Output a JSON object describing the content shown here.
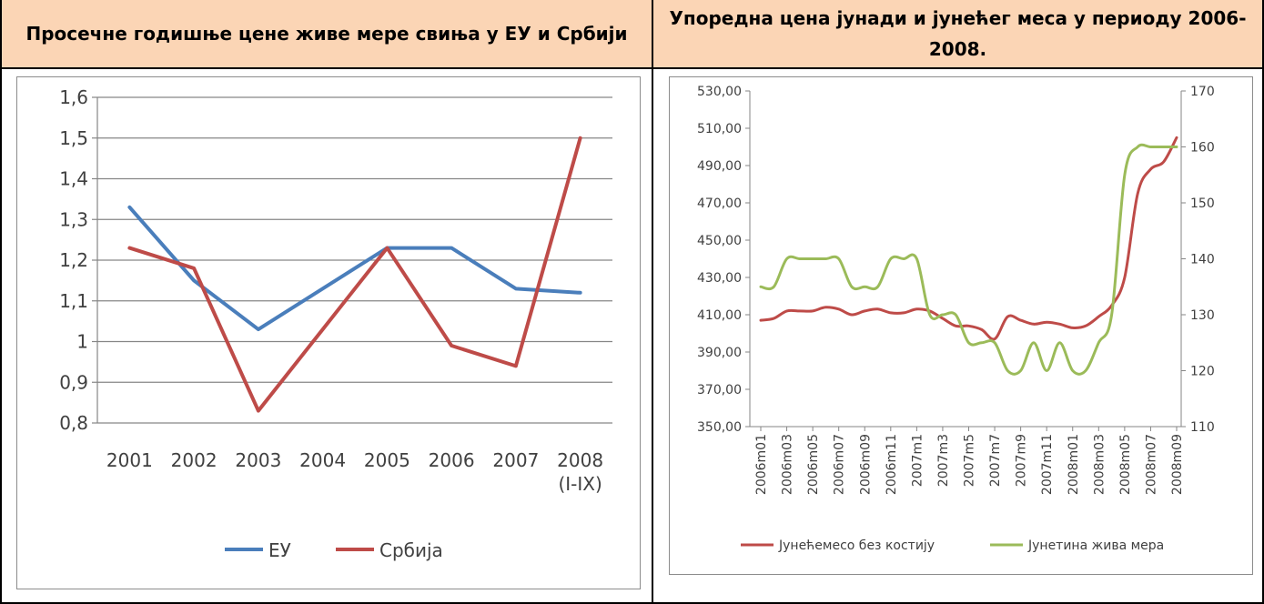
{
  "headers": {
    "left": "Просечне годишње цене живе мере свиња у ЕУ и Србији",
    "right": "Упоредна цена јунади и јунећег меса у периоду 2006-2008."
  },
  "chart_data": [
    {
      "type": "line",
      "title": "Просечне годишње цене живе мере свиња у ЕУ и Србији",
      "categories": [
        "2001",
        "2002",
        "2003",
        "2004",
        "2005",
        "2006",
        "2007",
        "2008 (I-IX)"
      ],
      "y_tick_labels": [
        "0,8",
        "0,9",
        "1",
        "1,1",
        "1,2",
        "1,3",
        "1,4",
        "1,5",
        "1,6"
      ],
      "ylim": [
        0.8,
        1.6
      ],
      "grid": true,
      "legend_position": "bottom",
      "series": [
        {
          "name": "ЕУ",
          "color": "#4a7ebb",
          "values": [
            1.33,
            1.15,
            1.03,
            1.13,
            1.23,
            1.23,
            1.13,
            1.12
          ]
        },
        {
          "name": "Србија",
          "color": "#be4b48",
          "values": [
            1.23,
            1.18,
            0.83,
            1.03,
            1.23,
            0.99,
            0.94,
            1.5
          ]
        }
      ]
    },
    {
      "type": "line",
      "title": "Упоредна цена јунади и јунећег меса у периоду 2006-2008.",
      "x": [
        "2006m01",
        "2006m02",
        "2006m03",
        "2006m04",
        "2006m05",
        "2006m06",
        "2006m07",
        "2006m08",
        "2006m09",
        "2006m10",
        "2006m11",
        "2006m12",
        "2007m1",
        "2007m2",
        "2007m3",
        "2007m4",
        "2007m5",
        "2007m6",
        "2007m7",
        "2007m8",
        "2007m9",
        "2007m10",
        "2007m11",
        "2007m12",
        "2008m01",
        "2008m02",
        "2008m03",
        "2008m04",
        "2008m05",
        "2008m06",
        "2008m07",
        "2008m08",
        "2008m09"
      ],
      "x_tick_labels": [
        "2006m01",
        "2006m03",
        "2006m05",
        "2006m07",
        "2006m09",
        "2006m11",
        "2007m1",
        "2007m3",
        "2007m5",
        "2007m7",
        "2007m9",
        "2007m11",
        "2008m01",
        "2008m03",
        "2008m05",
        "2008m07",
        "2008m09"
      ],
      "y_left_tick_labels": [
        "350,00",
        "370,00",
        "390,00",
        "410,00",
        "430,00",
        "450,00",
        "470,00",
        "490,00",
        "510,00",
        "530,00"
      ],
      "y_right_tick_labels": [
        "110",
        "120",
        "130",
        "140",
        "150",
        "160",
        "170"
      ],
      "ylim_left": [
        350,
        530
      ],
      "ylim_right": [
        110,
        170
      ],
      "grid": false,
      "legend_position": "bottom",
      "series": [
        {
          "name": "Јунећемесо без костију",
          "axis": "left",
          "color": "#be4b48",
          "values": [
            407,
            408,
            412,
            412,
            412,
            414,
            413,
            410,
            412,
            413,
            411,
            411,
            413,
            412,
            408,
            404,
            404,
            402,
            397,
            409,
            407,
            405,
            406,
            405,
            403,
            404,
            409,
            415,
            430,
            475,
            488,
            492,
            505
          ]
        },
        {
          "name": "Јунетина жива мера",
          "axis": "right",
          "color": "#9bbb59",
          "values": [
            135,
            135,
            140,
            140,
            140,
            140,
            140,
            135,
            135,
            135,
            140,
            140,
            140,
            130,
            130,
            130,
            125,
            125,
            125,
            120,
            120,
            125,
            120,
            125,
            120,
            120,
            125,
            130,
            155,
            160,
            160,
            160,
            160
          ]
        }
      ]
    }
  ]
}
